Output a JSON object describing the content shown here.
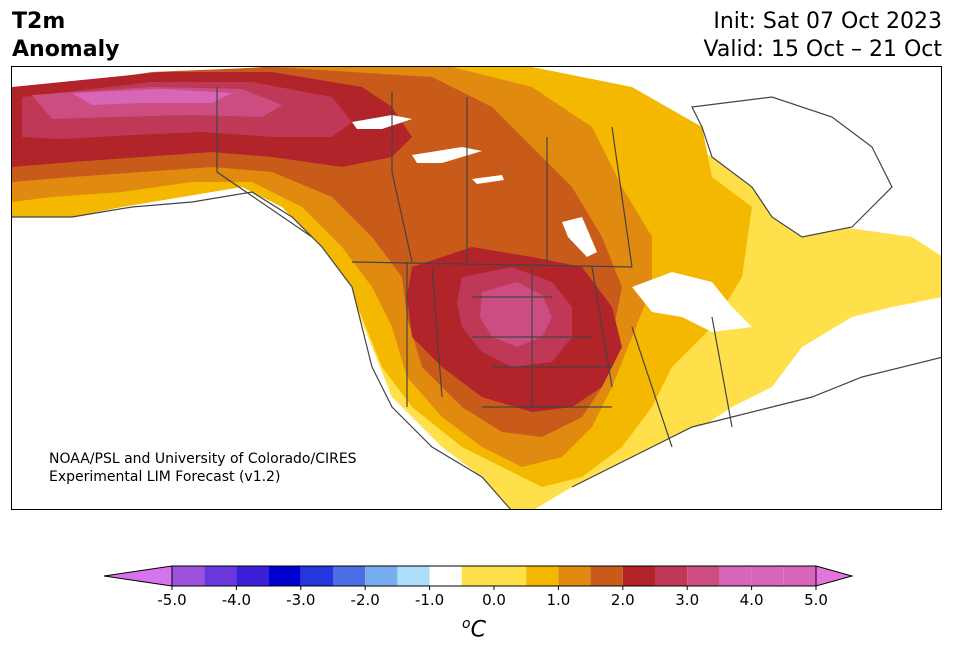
{
  "title": {
    "variable": "T2m",
    "subtitle": "Anomaly",
    "init": "Init: Sat 07 Oct 2023",
    "valid": "Valid: 15 Oct – 21 Oct"
  },
  "credit": {
    "line1": "NOAA/PSL and University of Colorado/CIRES",
    "line2": "Experimental LIM Forecast (v1.2)"
  },
  "colorbar": {
    "units_super": "o",
    "units_main": "C",
    "tick_labels": [
      "-5.0",
      "-4.0",
      "-3.0",
      "-2.0",
      "-1.0",
      "0.0",
      "1.0",
      "2.0",
      "3.0",
      "4.0",
      "5.0"
    ],
    "levels": [
      -5.0,
      -4.5,
      -4.0,
      -3.5,
      -3.0,
      -2.5,
      -2.0,
      -1.5,
      -1.0,
      -0.5,
      0.5,
      1.0,
      1.5,
      2.0,
      2.5,
      3.0,
      3.5,
      4.0,
      4.5,
      5.0
    ],
    "colors": [
      "#9b52de",
      "#6a37dc",
      "#3c1fd6",
      "#0000d0",
      "#2437dc",
      "#4b6de6",
      "#77aef0",
      "#aedcfa",
      "#ffffff",
      "#ffe04a",
      "#f5b800",
      "#e08a10",
      "#c85a1a",
      "#b0242a",
      "#c03858",
      "#cc4e80",
      "#d866b8"
    ],
    "extend_min_color": "#d674ec",
    "extend_max_color": "#e374dc"
  },
  "map": {
    "region": "North America",
    "anomaly_colors": {
      "0.5-1.0": "#ffe04a",
      "1.0-1.5": "#f5b800",
      "1.5-2.0": "#e08a10",
      "2.0-2.5": "#c85a1a",
      "2.5-3.0": "#b0242a",
      "3.0-3.5": "#c03858",
      "3.5-4.0": "#cc4e80",
      "4.0-4.5": "#d866b8"
    }
  }
}
